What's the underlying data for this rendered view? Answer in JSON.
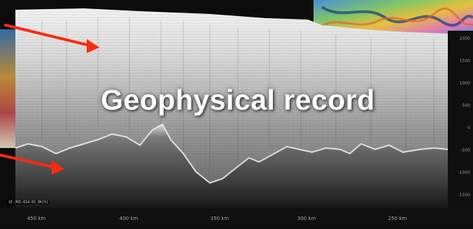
{
  "overlay": {
    "title": "Geophysical record"
  },
  "axis": {
    "y_ticks": [
      "2000",
      "1500",
      "1000",
      "500",
      "0",
      "-500",
      "-1000",
      "-1500"
    ],
    "x_ticks": [
      "450 km",
      "400 km",
      "350 km",
      "300 km",
      "250 km"
    ]
  },
  "caption": {
    "scale_text": "1E-JHI-614-01_0K(%)"
  },
  "colors": {
    "arrow": "#ff2a10",
    "title": "#ffffff",
    "radargram_light": "#d6d6d6",
    "radargram_dark": "#161616",
    "map_inset": [
      "#4a8fd8",
      "#e3c23c",
      "#7cc46b",
      "#e07ab8"
    ]
  }
}
